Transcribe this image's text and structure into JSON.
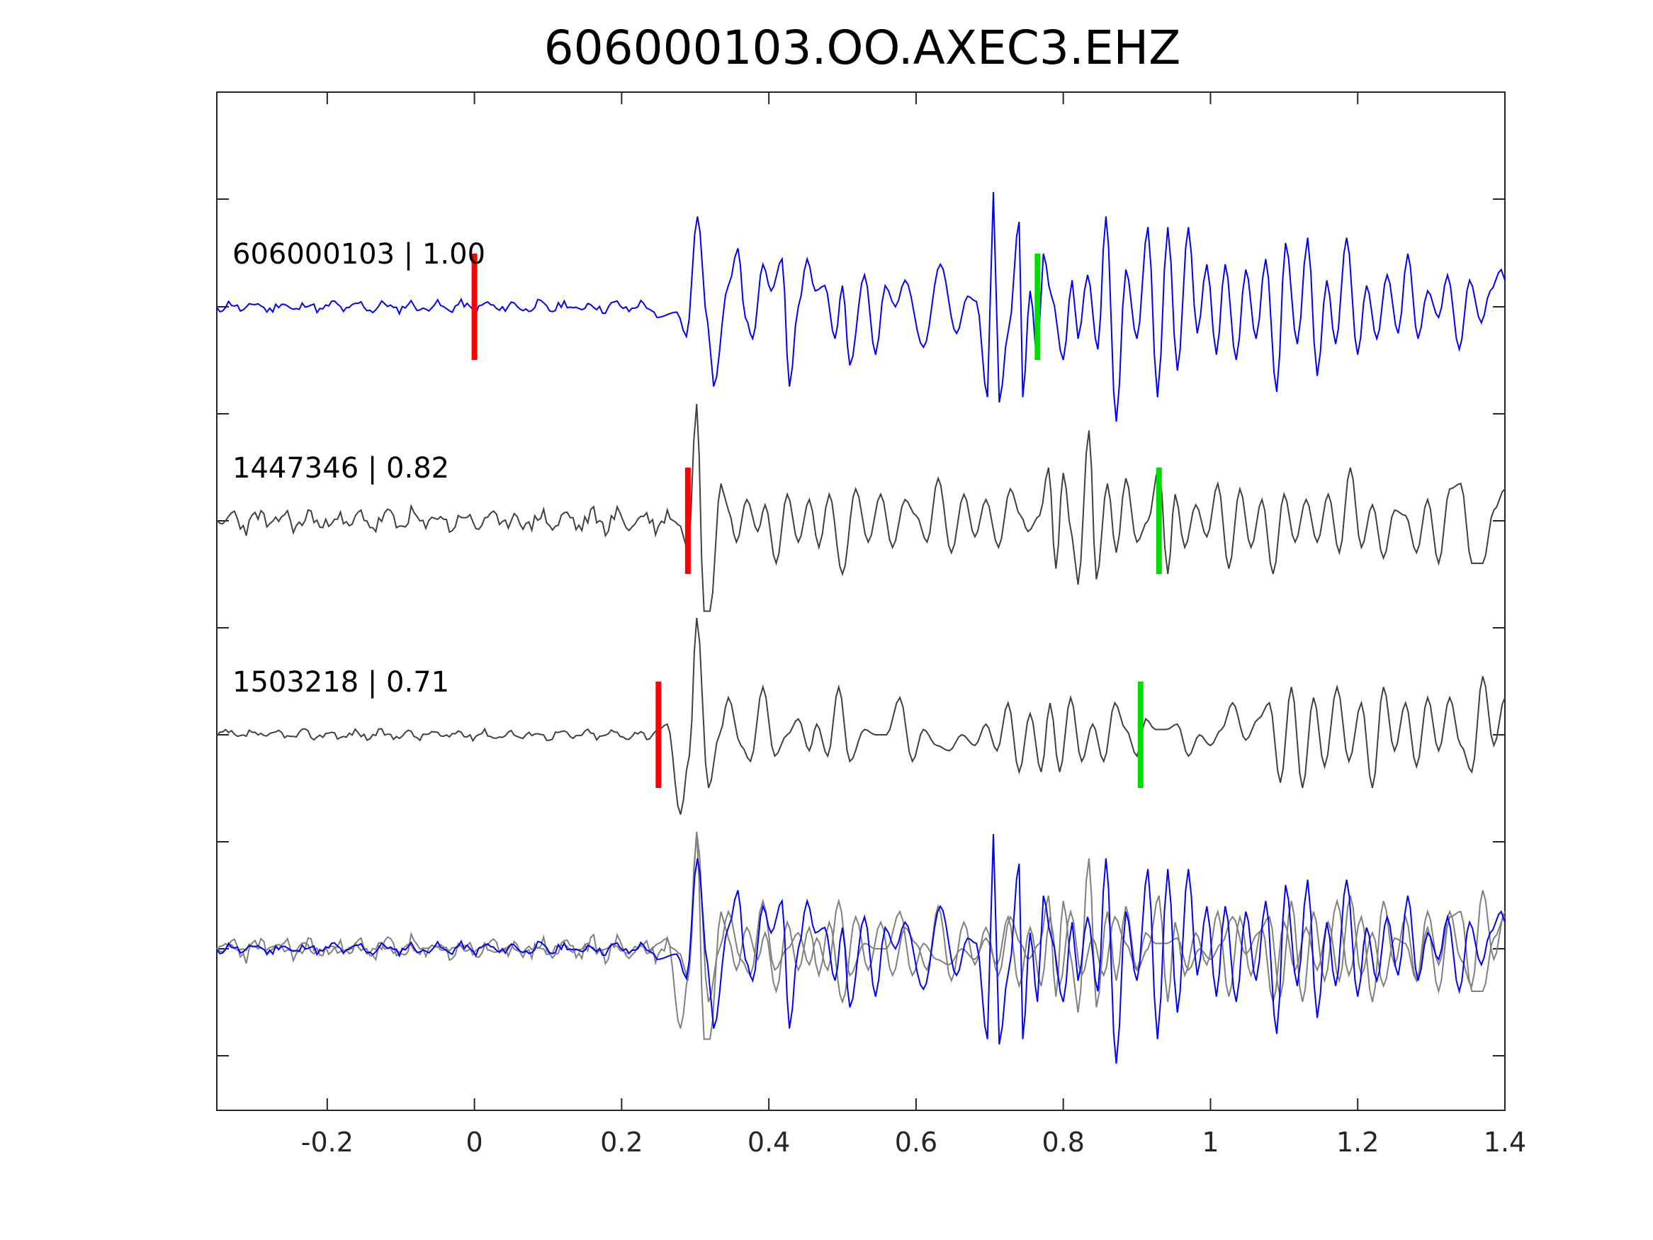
{
  "chart_data": {
    "type": "line",
    "title": "606000103.OO.AXEC3.EHZ",
    "xlabel": "",
    "ylabel": "",
    "xlim": [
      -0.35,
      1.4
    ],
    "x_ticks": [
      -0.2,
      0,
      0.2,
      0.4,
      0.6,
      0.8,
      1,
      1.2,
      1.4
    ],
    "x_tick_labels": [
      "-0.2",
      "0",
      "0.2",
      "0.4",
      "0.6",
      "0.8",
      "1",
      "1.2",
      "1.4"
    ],
    "grid": false,
    "colors": {
      "template": "#0000ff",
      "match": "#404040",
      "overlay": "#808080",
      "p_pick": "#ff0000",
      "s_pick": "#00dd00"
    },
    "traces": [
      {
        "label": "606000103 | 1.00",
        "event_id": "606000103",
        "correlation": 1.0,
        "color": "#0000ff",
        "p_pick": 0.0,
        "s_pick": 0.765,
        "signal_onset": 0.24,
        "seed": 11,
        "noise_amp": 0.06,
        "peaks": [
          [
            0.248,
            -0.1
          ],
          [
            0.275,
            -0.05
          ],
          [
            0.288,
            -0.28
          ],
          [
            0.303,
            0.85
          ],
          [
            0.317,
            -0.15
          ],
          [
            0.325,
            -0.75
          ],
          [
            0.345,
            0.2
          ],
          [
            0.358,
            0.55
          ],
          [
            0.368,
            -0.1
          ],
          [
            0.378,
            -0.3
          ],
          [
            0.392,
            0.4
          ],
          [
            0.403,
            0.15
          ],
          [
            0.418,
            0.45
          ],
          [
            0.428,
            -0.75
          ],
          [
            0.44,
            0.0
          ],
          [
            0.452,
            0.45
          ],
          [
            0.463,
            0.15
          ],
          [
            0.476,
            0.2
          ],
          [
            0.49,
            -0.3
          ],
          [
            0.5,
            0.2
          ],
          [
            0.51,
            -0.55
          ],
          [
            0.53,
            0.3
          ],
          [
            0.545,
            -0.45
          ],
          [
            0.558,
            0.2
          ],
          [
            0.572,
            0.0
          ],
          [
            0.585,
            0.25
          ],
          [
            0.61,
            -0.38
          ],
          [
            0.633,
            0.4
          ],
          [
            0.655,
            -0.25
          ],
          [
            0.67,
            0.1
          ],
          [
            0.682,
            0.05
          ],
          [
            0.697,
            -0.85
          ],
          [
            0.705,
            1.08
          ],
          [
            0.713,
            -0.9
          ],
          [
            0.726,
            -0.2
          ],
          [
            0.74,
            0.8
          ],
          [
            0.745,
            -0.85
          ],
          [
            0.755,
            0.15
          ],
          [
            0.765,
            -0.5
          ],
          [
            0.773,
            0.5
          ],
          [
            0.784,
            0.1
          ],
          [
            0.8,
            -0.5
          ],
          [
            0.812,
            0.25
          ],
          [
            0.82,
            -0.3
          ],
          [
            0.833,
            0.3
          ],
          [
            0.847,
            -0.4
          ],
          [
            0.858,
            0.85
          ],
          [
            0.872,
            -1.08
          ],
          [
            0.885,
            0.35
          ],
          [
            0.9,
            -0.3
          ],
          [
            0.915,
            0.75
          ],
          [
            0.928,
            -0.85
          ],
          [
            0.942,
            0.75
          ],
          [
            0.955,
            -0.6
          ],
          [
            0.97,
            0.75
          ],
          [
            0.982,
            -0.25
          ],
          [
            0.995,
            0.4
          ],
          [
            1.008,
            -0.45
          ],
          [
            1.02,
            0.4
          ],
          [
            1.035,
            -0.5
          ],
          [
            1.048,
            0.35
          ],
          [
            1.062,
            -0.3
          ],
          [
            1.075,
            0.45
          ],
          [
            1.09,
            -0.8
          ],
          [
            1.102,
            0.6
          ],
          [
            1.118,
            -0.35
          ],
          [
            1.132,
            0.65
          ],
          [
            1.145,
            -0.65
          ],
          [
            1.158,
            0.25
          ],
          [
            1.17,
            -0.35
          ],
          [
            1.185,
            0.65
          ],
          [
            1.2,
            -0.45
          ],
          [
            1.212,
            0.2
          ],
          [
            1.226,
            -0.3
          ],
          [
            1.24,
            0.3
          ],
          [
            1.255,
            -0.25
          ],
          [
            1.268,
            0.5
          ],
          [
            1.282,
            -0.3
          ],
          [
            1.295,
            0.15
          ],
          [
            1.31,
            -0.1
          ],
          [
            1.322,
            0.3
          ],
          [
            1.338,
            -0.4
          ],
          [
            1.352,
            0.25
          ],
          [
            1.368,
            -0.15
          ],
          [
            1.38,
            0.15
          ],
          [
            1.395,
            0.35
          ],
          [
            1.4,
            0.25
          ]
        ]
      },
      {
        "label": "1447346 | 0.82",
        "event_id": "1447346",
        "correlation": 0.82,
        "color": "#404040",
        "p_pick": 0.29,
        "s_pick": 0.93,
        "signal_onset": 0.27,
        "seed": 23,
        "noise_amp": 0.12,
        "peaks": [
          [
            0.28,
            -0.05
          ],
          [
            0.29,
            -0.3
          ],
          [
            0.302,
            1.1
          ],
          [
            0.312,
            -0.85
          ],
          [
            0.32,
            -0.85
          ],
          [
            0.335,
            0.35
          ],
          [
            0.345,
            0.1
          ],
          [
            0.356,
            -0.2
          ],
          [
            0.37,
            0.2
          ],
          [
            0.385,
            -0.1
          ],
          [
            0.395,
            0.15
          ],
          [
            0.41,
            -0.4
          ],
          [
            0.425,
            0.25
          ],
          [
            0.44,
            -0.2
          ],
          [
            0.455,
            0.2
          ],
          [
            0.468,
            -0.25
          ],
          [
            0.482,
            0.25
          ],
          [
            0.5,
            -0.5
          ],
          [
            0.518,
            0.3
          ],
          [
            0.535,
            -0.2
          ],
          [
            0.552,
            0.25
          ],
          [
            0.568,
            -0.25
          ],
          [
            0.585,
            0.2
          ],
          [
            0.6,
            0.05
          ],
          [
            0.615,
            -0.2
          ],
          [
            0.63,
            0.4
          ],
          [
            0.648,
            -0.3
          ],
          [
            0.665,
            0.25
          ],
          [
            0.68,
            -0.15
          ],
          [
            0.695,
            0.2
          ],
          [
            0.712,
            -0.25
          ],
          [
            0.728,
            0.3
          ],
          [
            0.742,
            0.05
          ],
          [
            0.752,
            -0.1
          ],
          [
            0.768,
            0.05
          ],
          [
            0.78,
            0.5
          ],
          [
            0.79,
            -0.45
          ],
          [
            0.8,
            0.45
          ],
          [
            0.812,
            -0.15
          ],
          [
            0.82,
            -0.6
          ],
          [
            0.835,
            0.85
          ],
          [
            0.845,
            -0.55
          ],
          [
            0.86,
            0.35
          ],
          [
            0.872,
            -0.3
          ],
          [
            0.885,
            0.4
          ],
          [
            0.9,
            -0.2
          ],
          [
            0.915,
            0.0
          ],
          [
            0.93,
            0.5
          ],
          [
            0.942,
            -0.5
          ],
          [
            0.952,
            0.25
          ],
          [
            0.965,
            -0.25
          ],
          [
            0.98,
            0.15
          ],
          [
            0.995,
            -0.15
          ],
          [
            1.01,
            0.35
          ],
          [
            1.025,
            -0.45
          ],
          [
            1.04,
            0.3
          ],
          [
            1.055,
            -0.25
          ],
          [
            1.07,
            0.2
          ],
          [
            1.085,
            -0.5
          ],
          [
            1.1,
            0.25
          ],
          [
            1.115,
            -0.2
          ],
          [
            1.13,
            0.2
          ],
          [
            1.145,
            -0.2
          ],
          [
            1.16,
            0.25
          ],
          [
            1.175,
            -0.3
          ],
          [
            1.19,
            0.5
          ],
          [
            1.205,
            -0.25
          ],
          [
            1.22,
            0.15
          ],
          [
            1.235,
            -0.35
          ],
          [
            1.25,
            0.1
          ],
          [
            1.265,
            0.05
          ],
          [
            1.28,
            -0.3
          ],
          [
            1.295,
            0.2
          ],
          [
            1.31,
            -0.4
          ],
          [
            1.325,
            0.3
          ],
          [
            1.34,
            0.35
          ],
          [
            1.355,
            -0.4
          ],
          [
            1.37,
            -0.4
          ],
          [
            1.385,
            0.1
          ],
          [
            1.4,
            0.3
          ]
        ]
      },
      {
        "label": "1503218 | 0.71",
        "event_id": "1503218",
        "correlation": 0.71,
        "color": "#404040",
        "p_pick": 0.25,
        "s_pick": 0.905,
        "signal_onset": 0.24,
        "seed": 37,
        "noise_amp": 0.05,
        "peaks": [
          [
            0.25,
            0.05
          ],
          [
            0.262,
            0.1
          ],
          [
            0.28,
            -0.75
          ],
          [
            0.292,
            -0.2
          ],
          [
            0.302,
            1.1
          ],
          [
            0.318,
            -0.5
          ],
          [
            0.333,
            0.0
          ],
          [
            0.345,
            0.35
          ],
          [
            0.362,
            -0.1
          ],
          [
            0.375,
            -0.25
          ],
          [
            0.392,
            0.45
          ],
          [
            0.408,
            -0.2
          ],
          [
            0.425,
            0.0
          ],
          [
            0.44,
            0.15
          ],
          [
            0.455,
            -0.15
          ],
          [
            0.465,
            0.1
          ],
          [
            0.48,
            -0.2
          ],
          [
            0.495,
            0.45
          ],
          [
            0.51,
            -0.25
          ],
          [
            0.53,
            0.05
          ],
          [
            0.545,
            0.0
          ],
          [
            0.56,
            0.0
          ],
          [
            0.578,
            0.35
          ],
          [
            0.595,
            -0.25
          ],
          [
            0.61,
            0.05
          ],
          [
            0.628,
            -0.1
          ],
          [
            0.645,
            -0.15
          ],
          [
            0.662,
            0.0
          ],
          [
            0.68,
            -0.1
          ],
          [
            0.695,
            0.1
          ],
          [
            0.71,
            -0.15
          ],
          [
            0.725,
            0.3
          ],
          [
            0.74,
            -0.35
          ],
          [
            0.755,
            0.2
          ],
          [
            0.77,
            -0.35
          ],
          [
            0.782,
            0.3
          ],
          [
            0.795,
            -0.35
          ],
          [
            0.81,
            0.35
          ],
          [
            0.825,
            -0.25
          ],
          [
            0.84,
            0.1
          ],
          [
            0.855,
            -0.25
          ],
          [
            0.87,
            0.3
          ],
          [
            0.885,
            0.05
          ],
          [
            0.9,
            -0.2
          ],
          [
            0.912,
            0.15
          ],
          [
            0.925,
            0.05
          ],
          [
            0.94,
            0.05
          ],
          [
            0.955,
            0.1
          ],
          [
            0.97,
            -0.2
          ],
          [
            0.985,
            0.0
          ],
          [
            1.0,
            -0.1
          ],
          [
            1.015,
            0.05
          ],
          [
            1.03,
            0.3
          ],
          [
            1.048,
            -0.05
          ],
          [
            1.065,
            0.15
          ],
          [
            1.08,
            0.3
          ],
          [
            1.095,
            -0.45
          ],
          [
            1.11,
            0.45
          ],
          [
            1.125,
            -0.5
          ],
          [
            1.14,
            0.35
          ],
          [
            1.155,
            -0.3
          ],
          [
            1.172,
            0.45
          ],
          [
            1.188,
            -0.25
          ],
          [
            1.205,
            0.3
          ],
          [
            1.22,
            -0.5
          ],
          [
            1.235,
            0.45
          ],
          [
            1.25,
            -0.15
          ],
          [
            1.265,
            0.3
          ],
          [
            1.28,
            -0.3
          ],
          [
            1.295,
            0.35
          ],
          [
            1.31,
            -0.15
          ],
          [
            1.325,
            0.35
          ],
          [
            1.34,
            -0.1
          ],
          [
            1.355,
            -0.35
          ],
          [
            1.37,
            0.55
          ],
          [
            1.385,
            -0.1
          ],
          [
            1.4,
            0.35
          ]
        ]
      }
    ]
  }
}
